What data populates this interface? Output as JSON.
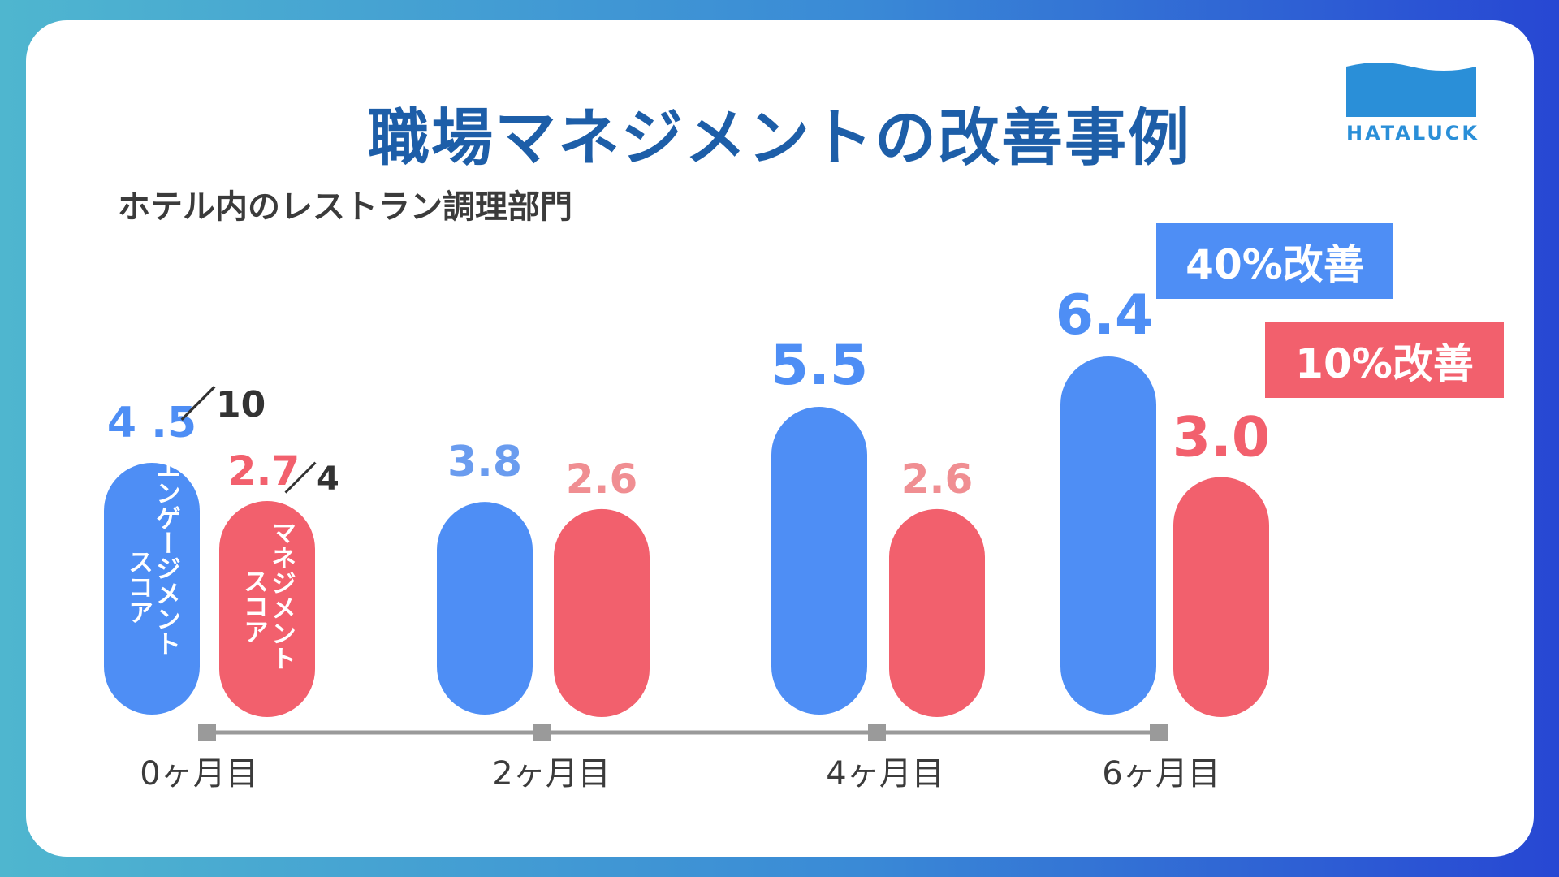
{
  "title": "職場マネジメントの改善事例",
  "subtitle": "ホテル内のレストラン調理部門",
  "logo": {
    "text": "HATALUCK"
  },
  "improvements": {
    "engagement": "40%改善",
    "management": "10%改善"
  },
  "colors": {
    "engagement": "#4e8ef5",
    "engagement_light": "#6a9cef",
    "management": "#f2606d",
    "management_light": "#f08e92",
    "timeline": "#9a9a9a",
    "title": "#1d5ea8"
  },
  "chart_data": {
    "type": "bar",
    "title": "職場マネジメントの改善事例",
    "subtitle": "ホテル内のレストラン調理部門",
    "categories": [
      "0ヶ月目",
      "2ヶ月目",
      "4ヶ月目",
      "6ヶ月目"
    ],
    "series": [
      {
        "name": "エンゲージメントスコア",
        "values": [
          4.5,
          3.8,
          5.5,
          6.4
        ],
        "labels": [
          "4 .5",
          "3.8",
          "5.5",
          "6.4"
        ],
        "scale_note": "／10"
      },
      {
        "name": "マネジメントスコア",
        "values": [
          2.7,
          2.6,
          2.6,
          3.0
        ],
        "labels": [
          "2.7",
          "2.6",
          "2.6",
          "3.0"
        ],
        "scale_note": "／4"
      }
    ],
    "bar_text": [
      "エンゲージメントスコア",
      "マネジメントスコア"
    ],
    "grid": false
  }
}
